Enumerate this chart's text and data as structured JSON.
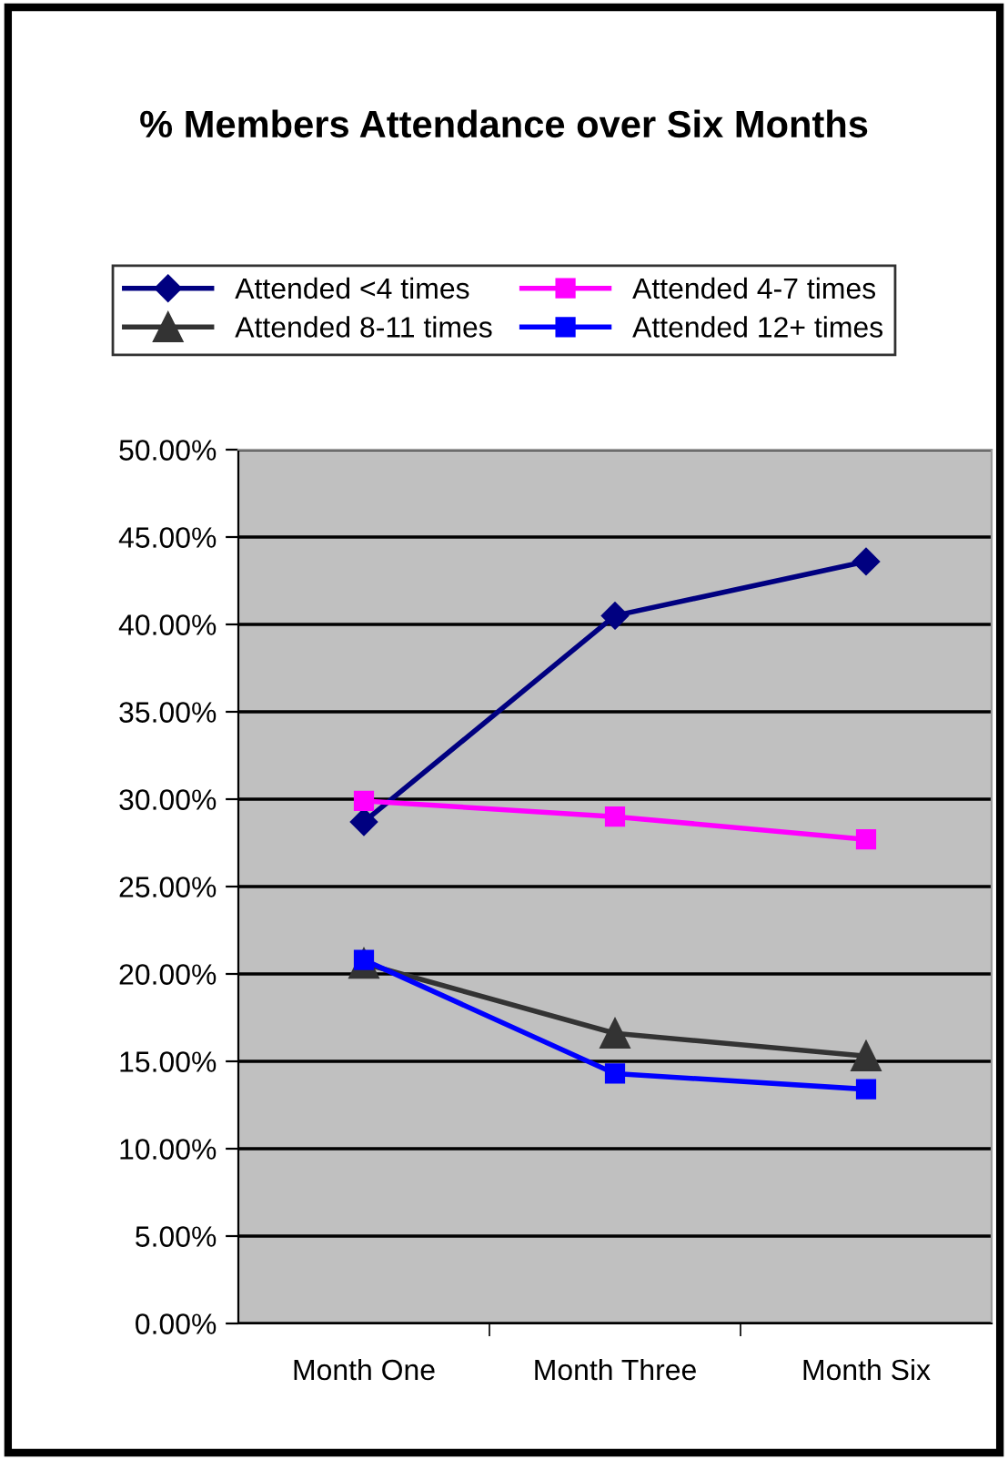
{
  "chart_data": {
    "type": "line",
    "title": "% Members Attendance over Six Months",
    "categories": [
      "Month One",
      "Month Three",
      "Month Six"
    ],
    "series": [
      {
        "name": "Attended <4 times",
        "color": "#000080",
        "marker": "diamond",
        "values": [
          28.7,
          40.5,
          43.6
        ]
      },
      {
        "name": "Attended 4-7 times",
        "color": "#ff00ff",
        "marker": "square",
        "values": [
          29.9,
          29.0,
          27.7
        ]
      },
      {
        "name": "Attended 8-11 times",
        "color": "#333333",
        "marker": "triangle",
        "values": [
          20.6,
          16.6,
          15.3
        ]
      },
      {
        "name": "Attended 12+ times",
        "color": "#0000ff",
        "marker": "square",
        "values": [
          20.8,
          14.3,
          13.4
        ]
      }
    ],
    "ylim": [
      0,
      50
    ],
    "yticks": [
      {
        "value": 0,
        "label": "0.00%"
      },
      {
        "value": 5,
        "label": "5.00%"
      },
      {
        "value": 10,
        "label": "10.00%"
      },
      {
        "value": 15,
        "label": "15.00%"
      },
      {
        "value": 20,
        "label": "20.00%"
      },
      {
        "value": 25,
        "label": "25.00%"
      },
      {
        "value": 30,
        "label": "30.00%"
      },
      {
        "value": 35,
        "label": "35.00%"
      },
      {
        "value": 40,
        "label": "40.00%"
      },
      {
        "value": 45,
        "label": "45.00%"
      },
      {
        "value": 50,
        "label": "50.00%"
      }
    ],
    "grid": "y",
    "legend": "top",
    "line_style": "solid"
  }
}
